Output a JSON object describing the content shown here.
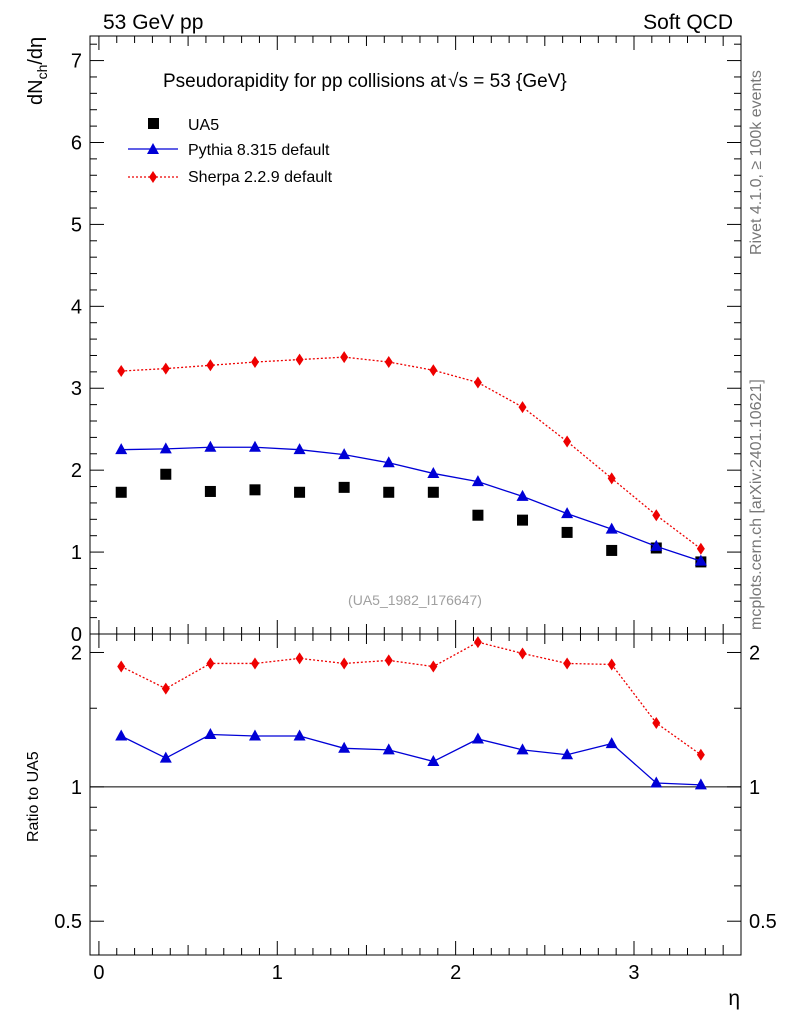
{
  "header": {
    "left": "53 GeV pp",
    "right": "Soft QCD"
  },
  "side": {
    "rivet": "Rivet 4.1.0, ≥ 100k events",
    "mcplots": "mcplots.cern.ch [arXiv:2401.10621]"
  },
  "chart_data": [
    {
      "panel": "main",
      "type": "scatter",
      "title": "Pseudorapidity for pp collisions at",
      "title_sqrt": "√s = 53 {GeV}",
      "ylabel": "dN",
      "ylabel_sub": "ch",
      "ylabel_tail": "/dη",
      "watermark": "(UA5_1982_I176647)",
      "xlim": [
        -0.05,
        3.6
      ],
      "ylim": [
        0,
        7.3
      ],
      "yticks": [
        0,
        1,
        2,
        3,
        4,
        5,
        6,
        7
      ],
      "ytick_labels": [
        "0",
        "1",
        "2",
        "3",
        "4",
        "5",
        "6",
        "7"
      ],
      "x": [
        0.125,
        0.375,
        0.625,
        0.875,
        1.125,
        1.375,
        1.625,
        1.875,
        2.125,
        2.375,
        2.625,
        2.875,
        3.125,
        3.375
      ],
      "series": [
        {
          "name": "UA5",
          "color": "#000000",
          "marker": "square",
          "line": "none",
          "values": [
            1.73,
            1.95,
            1.74,
            1.76,
            1.73,
            1.79,
            1.73,
            1.73,
            1.45,
            1.39,
            1.24,
            1.02,
            1.05,
            0.88
          ]
        },
        {
          "name": "Pythia 8.315 default",
          "color": "#0000d6",
          "marker": "triangle",
          "line": "solid",
          "values": [
            2.25,
            2.26,
            2.28,
            2.28,
            2.25,
            2.19,
            2.09,
            1.96,
            1.86,
            1.68,
            1.47,
            1.28,
            1.07,
            0.89
          ]
        },
        {
          "name": "Sherpa 2.2.9 default",
          "color": "#ee0000",
          "marker": "diamond",
          "line": "dotted",
          "values": [
            3.21,
            3.24,
            3.28,
            3.32,
            3.35,
            3.38,
            3.32,
            3.22,
            3.07,
            2.77,
            2.35,
            1.9,
            1.45,
            1.04
          ]
        }
      ]
    },
    {
      "panel": "ratio",
      "type": "line",
      "ylabel": "Ratio to UA5",
      "xlabel": "η",
      "xlim": [
        -0.05,
        3.6
      ],
      "ylim": [
        0.42,
        2.2
      ],
      "reference": 1,
      "xticks": [
        0,
        1,
        2,
        3
      ],
      "xtick_labels": [
        "0",
        "1",
        "2",
        "3"
      ],
      "yticks": [
        0.5,
        1,
        2
      ],
      "ytick_labels": [
        "0.5",
        "1",
        "2"
      ],
      "x": [
        0.125,
        0.375,
        0.625,
        0.875,
        1.125,
        1.375,
        1.625,
        1.875,
        2.125,
        2.375,
        2.625,
        2.875,
        3.125,
        3.375
      ],
      "series": [
        {
          "name": "Pythia 8.315 default",
          "color": "#0000d6",
          "marker": "triangle",
          "line": "solid",
          "values": [
            1.3,
            1.16,
            1.31,
            1.3,
            1.3,
            1.22,
            1.21,
            1.14,
            1.28,
            1.21,
            1.18,
            1.25,
            1.02,
            1.01
          ]
        },
        {
          "name": "Sherpa 2.2.9 default",
          "color": "#ee0000",
          "marker": "diamond",
          "line": "dotted",
          "values": [
            1.86,
            1.66,
            1.89,
            1.89,
            1.94,
            1.89,
            1.92,
            1.86,
            2.11,
            1.99,
            1.89,
            1.88,
            1.39,
            1.18
          ]
        }
      ]
    }
  ]
}
